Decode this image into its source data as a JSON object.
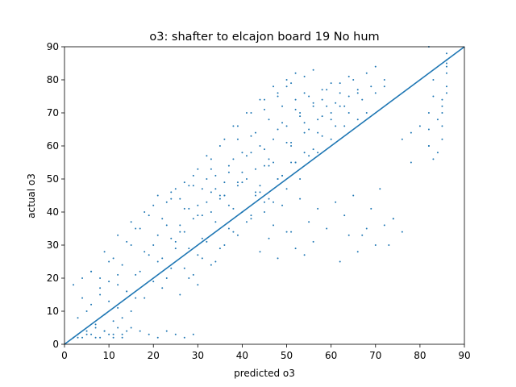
{
  "chart_data": {
    "type": "scatter",
    "title": "o3: shafter to elcajon board 19 No hum",
    "xlabel": "predicted o3",
    "ylabel": "actual o3",
    "xlim": [
      0,
      90
    ],
    "ylim": [
      0,
      90
    ],
    "xticks": [
      0,
      10,
      20,
      30,
      40,
      50,
      60,
      70,
      80,
      90
    ],
    "yticks": [
      0,
      10,
      20,
      30,
      40,
      50,
      60,
      70,
      80,
      90
    ],
    "grid": false,
    "legend": "none",
    "point_color": "#1f77b4",
    "series": [
      {
        "x": [
          2,
          3,
          4,
          5,
          6,
          7,
          8,
          9,
          10,
          11,
          12,
          13,
          14,
          3,
          5,
          7,
          9,
          11,
          13,
          15,
          4,
          6,
          8,
          10,
          12,
          14,
          16,
          2,
          4,
          6,
          8,
          10,
          12,
          3,
          5,
          7,
          9,
          11,
          13,
          15,
          17,
          19,
          21,
          23,
          25,
          27,
          29,
          6,
          8,
          10,
          12,
          14,
          16,
          18,
          20,
          22,
          24,
          26,
          28,
          30,
          9,
          11,
          13,
          15,
          17,
          19,
          21,
          23,
          25,
          27,
          29,
          31,
          33,
          12,
          14,
          16,
          18,
          20,
          22,
          24,
          26,
          28,
          30,
          32,
          34,
          36,
          15,
          17,
          19,
          21,
          23,
          25,
          27,
          29,
          31,
          33,
          35,
          37,
          39,
          18,
          20,
          22,
          24,
          26,
          28,
          30,
          32,
          34,
          36,
          38,
          40,
          42,
          21,
          23,
          25,
          27,
          29,
          31,
          33,
          35,
          37,
          39,
          41,
          43,
          45,
          24,
          26,
          28,
          30,
          32,
          34,
          36,
          38,
          40,
          42,
          44,
          46,
          48,
          27,
          29,
          31,
          33,
          35,
          37,
          39,
          41,
          43,
          45,
          47,
          49,
          51,
          30,
          32,
          34,
          36,
          38,
          40,
          42,
          44,
          46,
          48,
          50,
          52,
          54,
          33,
          35,
          37,
          39,
          41,
          43,
          45,
          47,
          49,
          51,
          53,
          55,
          57,
          36,
          38,
          40,
          42,
          44,
          46,
          48,
          50,
          52,
          54,
          56,
          58,
          60,
          39,
          41,
          43,
          45,
          47,
          49,
          51,
          53,
          55,
          57,
          59,
          61,
          63,
          42,
          44,
          46,
          48,
          50,
          52,
          54,
          56,
          58,
          60,
          62,
          64,
          66,
          45,
          47,
          49,
          51,
          53,
          55,
          57,
          59,
          61,
          63,
          65,
          67,
          69,
          48,
          50,
          52,
          54,
          56,
          58,
          60,
          62,
          64,
          66,
          68,
          70,
          72,
          50,
          52,
          54,
          56,
          58,
          60,
          62,
          64,
          66,
          68,
          70,
          72,
          74,
          45,
          47,
          49,
          51,
          53,
          55,
          57,
          59,
          61,
          63,
          65,
          67,
          69,
          71,
          73,
          44,
          46,
          48,
          50,
          52,
          54,
          56,
          62,
          64,
          66,
          68,
          70,
          72,
          74,
          76,
          78,
          82,
          82,
          82,
          83,
          83,
          84,
          85,
          85,
          85,
          86,
          86,
          86,
          86,
          86,
          82,
          83,
          84,
          85,
          86,
          82,
          85,
          86,
          80,
          78,
          76
        ],
        "y": [
          2,
          3,
          2,
          4,
          3,
          5,
          2,
          4,
          3,
          2,
          5,
          3,
          4,
          8,
          10,
          6,
          9,
          7,
          8,
          10,
          14,
          12,
          15,
          13,
          11,
          16,
          14,
          18,
          20,
          22,
          17,
          19,
          21,
          2,
          3,
          2,
          4,
          3,
          2,
          5,
          4,
          3,
          2,
          4,
          3,
          2,
          3,
          22,
          20,
          25,
          18,
          16,
          21,
          14,
          19,
          17,
          23,
          15,
          20,
          18,
          28,
          26,
          24,
          30,
          22,
          27,
          25,
          20,
          29,
          23,
          21,
          26,
          24,
          33,
          31,
          35,
          28,
          30,
          26,
          32,
          34,
          29,
          27,
          31,
          25,
          30,
          37,
          35,
          39,
          33,
          36,
          31,
          34,
          38,
          32,
          40,
          29,
          35,
          33,
          40,
          42,
          38,
          44,
          36,
          41,
          39,
          43,
          37,
          45,
          34,
          40,
          38,
          45,
          43,
          47,
          41,
          48,
          39,
          46,
          44,
          42,
          49,
          37,
          45,
          43,
          46,
          44,
          48,
          42,
          50,
          47,
          45,
          41,
          49,
          39,
          46,
          44,
          50,
          49,
          51,
          47,
          53,
          45,
          52,
          48,
          50,
          46,
          54,
          43,
          51,
          55,
          53,
          57,
          51,
          49,
          56,
          52,
          58,
          48,
          54,
          50,
          47,
          55,
          58,
          56,
          60,
          54,
          62,
          57,
          53,
          59,
          55,
          51,
          61,
          50,
          57,
          64,
          62,
          66,
          58,
          63,
          60,
          56,
          65,
          61,
          55,
          67,
          59,
          63,
          68,
          66,
          70,
          64,
          71,
          62,
          67,
          60,
          69,
          65,
          58,
          72,
          66,
          72,
          70,
          74,
          68,
          75,
          66,
          71,
          64,
          73,
          69,
          62,
          76,
          70,
          76,
          74,
          78,
          72,
          79,
          70,
          75,
          68,
          77,
          73,
          66,
          80,
          74,
          78,
          76,
          80,
          74,
          81,
          72,
          77,
          70,
          79,
          75,
          68,
          82,
          76,
          80,
          78,
          82,
          76,
          83,
          74,
          79,
          72,
          81,
          77,
          70,
          84,
          78,
          38,
          40,
          36,
          42,
          34,
          44,
          37,
          41,
          35,
          43,
          39,
          45,
          33,
          41,
          47,
          30,
          28,
          32,
          26,
          34,
          29,
          27,
          31,
          25,
          33,
          28,
          35,
          30,
          36,
          38,
          34,
          55,
          60,
          65,
          70,
          75,
          80,
          58,
          62,
          66,
          72,
          76,
          78,
          82,
          85,
          88,
          90,
          56,
          68,
          74,
          86,
          60,
          70,
          84,
          66,
          64,
          62
        ]
      }
    ],
    "fit_line": {
      "x": [
        0,
        90
      ],
      "y": [
        0,
        90
      ]
    }
  }
}
